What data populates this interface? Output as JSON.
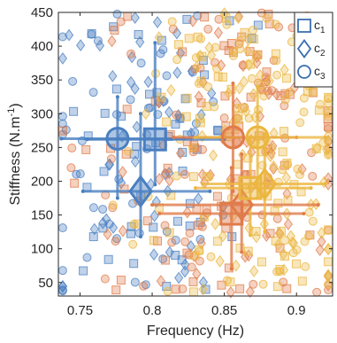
{
  "chart_data": {
    "type": "scatter",
    "xlabel": "Frequency (Hz)",
    "ylabel_main": "Stiffness (N.m",
    "ylabel_sup": "-1",
    "ylabel_close": ")",
    "xlim": [
      0.735,
      0.925
    ],
    "ylim": [
      30,
      450
    ],
    "x_ticks": [
      0.75,
      0.8,
      0.85,
      0.9
    ],
    "x_tick_labels": [
      "0.75",
      "0.8",
      "0.85",
      "0.9"
    ],
    "y_ticks": [
      50,
      100,
      150,
      200,
      250,
      300,
      350,
      400,
      450
    ],
    "y_tick_labels": [
      "50",
      "100",
      "150",
      "200",
      "250",
      "300",
      "350",
      "400",
      "450"
    ],
    "grid": false,
    "legend_position": "top-right",
    "legend": [
      {
        "marker": "square",
        "label_main": "c",
        "label_sub": "1"
      },
      {
        "marker": "diamond",
        "label_main": "c",
        "label_sub": "2"
      },
      {
        "marker": "circle",
        "label_main": "c",
        "label_sub": "3"
      }
    ],
    "colors": {
      "blue": "#4a7fc1",
      "orange": "#e07b4a",
      "yellow": "#ebb640",
      "axis": "#262626",
      "legend_marker": "#3a6fb0"
    },
    "series": [
      {
        "color": "blue",
        "clusters": [
          {
            "marker": "square",
            "mean_x": 0.802,
            "mean_y": 262,
            "x_err": [
              0.755,
              0.85
            ],
            "y_err": [
              195,
              405
            ]
          },
          {
            "marker": "diamond",
            "mean_x": 0.792,
            "mean_y": 185,
            "x_err": [
              0.752,
              0.84
            ],
            "y_err": [
              118,
              300
            ]
          },
          {
            "marker": "circle",
            "mean_x": 0.776,
            "mean_y": 263,
            "x_err": [
              0.737,
              0.822
            ],
            "y_err": [
              175,
              325
            ]
          }
        ],
        "scatter_x_range": [
          0.735,
          0.84
        ],
        "scatter_y_range": [
          35,
          450
        ]
      },
      {
        "color": "orange",
        "clusters": [
          {
            "marker": "square",
            "mean_x": 0.855,
            "mean_y": 152,
            "x_err": [
              0.805,
              0.905
            ],
            "y_err": [
              70,
              220
            ]
          },
          {
            "marker": "diamond",
            "mean_x": 0.862,
            "mean_y": 165,
            "x_err": [
              0.8,
              0.915
            ],
            "y_err": [
              95,
              240
            ]
          },
          {
            "marker": "circle",
            "mean_x": 0.856,
            "mean_y": 265,
            "x_err": [
              0.815,
              0.9
            ],
            "y_err": [
              185,
              345
            ]
          }
        ],
        "scatter_x_range": [
          0.76,
          0.925
        ],
        "scatter_y_range": [
          35,
          450
        ]
      },
      {
        "color": "yellow",
        "clusters": [
          {
            "marker": "square",
            "mean_x": 0.868,
            "mean_y": 190,
            "x_err": [
              0.83,
              0.91
            ],
            "y_err": [
              120,
              265
            ]
          },
          {
            "marker": "diamond",
            "mean_x": 0.878,
            "mean_y": 196,
            "x_err": [
              0.835,
              0.92
            ],
            "y_err": [
              125,
              270
            ]
          },
          {
            "marker": "circle",
            "mean_x": 0.873,
            "mean_y": 265,
            "x_err": [
              0.83,
              0.92
            ],
            "y_err": [
              175,
              340
            ]
          }
        ],
        "scatter_x_range": [
          0.78,
          0.925
        ],
        "scatter_y_range": [
          35,
          450
        ]
      }
    ]
  }
}
